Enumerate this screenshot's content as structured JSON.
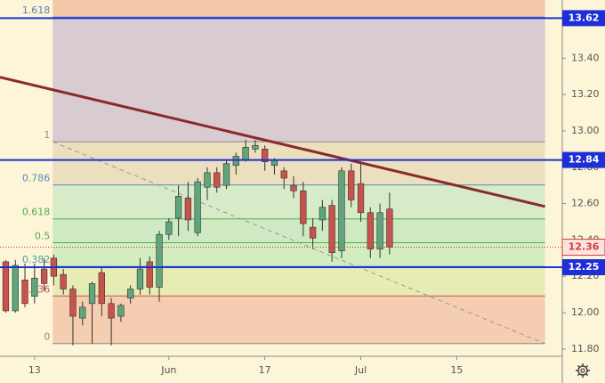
{
  "chart_data": {
    "type": "candlestick",
    "xlim": [
      -0.6,
      58
    ],
    "xticks": [
      {
        "value": 3,
        "label": "13"
      },
      {
        "value": 17,
        "label": "Jun"
      },
      {
        "value": 27,
        "label": "17"
      },
      {
        "value": 37,
        "label": "Jul"
      },
      {
        "value": 47,
        "label": "15"
      }
    ],
    "ylim": [
      11.76,
      13.72
    ],
    "yticks": [
      {
        "value": 11.8,
        "label": "11.80"
      },
      {
        "value": 12,
        "label": "12.00"
      },
      {
        "value": 12.2,
        "label": "12.20"
      },
      {
        "value": 12.4,
        "label": "12.40"
      },
      {
        "value": 12.6,
        "label": "12.60"
      },
      {
        "value": 12.8,
        "label": "12.80"
      },
      {
        "value": 13,
        "label": "13.00"
      },
      {
        "value": 13.2,
        "label": "13.20"
      },
      {
        "value": 13.4,
        "label": "13.40"
      }
    ],
    "x": [
      0,
      1,
      2,
      3,
      4,
      5,
      6,
      7,
      8,
      9,
      10,
      11,
      12,
      13,
      14,
      15,
      16,
      17,
      18,
      19,
      20,
      21,
      22,
      23,
      24,
      25,
      26,
      27,
      28,
      29,
      30,
      31,
      32,
      33,
      34,
      35,
      36,
      37,
      38,
      39,
      40
    ],
    "open": [
      12.28,
      12.01,
      12.18,
      12.09,
      12.24,
      12.3,
      12.21,
      12.13,
      11.97,
      12.05,
      12.22,
      12.05,
      11.98,
      12.08,
      12.13,
      12.28,
      12.14,
      12.43,
      12.52,
      12.63,
      12.44,
      12.69,
      12.77,
      12.7,
      12.81,
      12.84,
      12.9,
      12.9,
      12.81,
      12.78,
      12.7,
      12.67,
      12.47,
      12.51,
      12.59,
      12.34,
      12.78,
      12.71,
      12.55,
      12.35,
      12.57
    ],
    "high": [
      12.29,
      12.29,
      12.27,
      12.27,
      12.3,
      12.32,
      12.24,
      12.15,
      12.06,
      12.17,
      12.25,
      12.08,
      12.05,
      12.15,
      12.3,
      12.31,
      12.45,
      12.52,
      12.7,
      12.72,
      12.74,
      12.8,
      12.8,
      12.84,
      12.88,
      12.95,
      12.95,
      12.92,
      12.85,
      12.8,
      12.75,
      12.72,
      12.52,
      12.62,
      12.62,
      12.8,
      12.82,
      12.82,
      12.58,
      12.6,
      12.66
    ],
    "low": [
      12.0,
      12.0,
      12.03,
      12.05,
      12.12,
      12.15,
      12.1,
      11.82,
      11.93,
      11.83,
      11.98,
      11.82,
      11.95,
      12.05,
      12.1,
      12.1,
      12.06,
      12.4,
      12.42,
      12.45,
      12.42,
      12.62,
      12.66,
      12.68,
      12.76,
      12.83,
      12.88,
      12.78,
      12.76,
      12.68,
      12.63,
      12.42,
      12.35,
      12.45,
      12.28,
      12.3,
      12.58,
      12.5,
      12.3,
      12.3,
      12.32
    ],
    "close": [
      12.01,
      12.26,
      12.05,
      12.19,
      12.16,
      12.2,
      12.13,
      11.98,
      12.03,
      12.16,
      12.05,
      11.97,
      12.04,
      12.13,
      12.24,
      12.14,
      12.43,
      12.5,
      12.64,
      12.51,
      12.72,
      12.77,
      12.69,
      12.82,
      12.86,
      12.91,
      12.92,
      12.83,
      12.84,
      12.74,
      12.67,
      12.49,
      12.41,
      12.58,
      12.33,
      12.78,
      12.62,
      12.55,
      12.35,
      12.55,
      12.36
    ],
    "up_color": "#5fa67c",
    "down_color": "#c9534c",
    "fib": {
      "x": [
        4.9,
        56.2
      ],
      "high": 12.94,
      "low": 11.83,
      "levels": [
        0,
        0.236,
        0.382,
        0.5,
        0.618,
        0.786,
        1,
        1.618
      ],
      "level_colors": [
        "#8a8a8a",
        "#c9534c",
        "#4aa3a0",
        "#4caf50",
        "#4caf50",
        "#5b8db8",
        "#8a8a8a",
        "#5b7fb0"
      ],
      "zone_colors": [
        "#f5cdb0",
        "#e7ecb4",
        "#d3ecc0",
        "#cfe9c3",
        "#d8ebc9",
        "#ecdfbd",
        "#d8ccd2",
        "#f3c7a9"
      ]
    },
    "trend_line": {
      "x": [
        -0.6,
        56.2
      ],
      "values": [
        13.295,
        12.584
      ],
      "color": "#8b2a2a"
    },
    "price_lines": [
      {
        "value": 13.62,
        "color": "#1f2fd8"
      },
      {
        "value": 12.84,
        "color": "#1f2fd8"
      },
      {
        "value": 12.25,
        "color": "#1f2fd8"
      }
    ],
    "last_price": {
      "value": 12.36,
      "color": "#d23a3a"
    }
  }
}
